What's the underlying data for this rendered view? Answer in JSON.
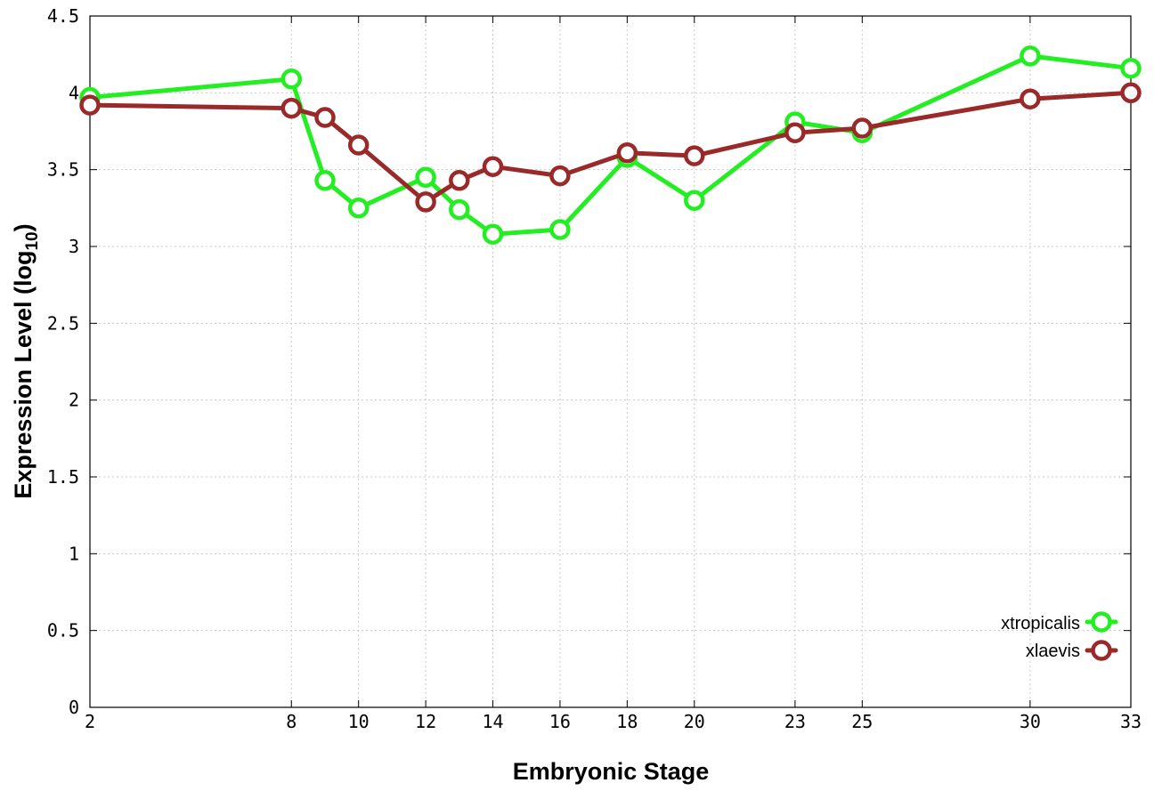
{
  "chart_data": {
    "type": "line",
    "title": "",
    "xlabel": "Embryonic Stage",
    "ylabel_main": "Expression Level (log",
    "ylabel_sub": "10",
    "ylabel_close": ")",
    "xlim": [
      2,
      33
    ],
    "ylim": [
      0,
      4.5
    ],
    "x_ticks": [
      2,
      8,
      10,
      12,
      14,
      16,
      18,
      20,
      23,
      25,
      30,
      33
    ],
    "x_tick_labels": [
      "2",
      "8",
      "10",
      "12",
      "14",
      "16",
      "18",
      "20",
      "23",
      "25",
      "30",
      "33"
    ],
    "y_ticks": [
      0,
      0.5,
      1,
      1.5,
      2,
      2.5,
      3,
      3.5,
      4,
      4.5
    ],
    "y_tick_labels": [
      "0",
      "0.5",
      "1",
      "1.5",
      "2",
      "2.5",
      "3",
      "3.5",
      "4",
      "4.5"
    ],
    "grid": true,
    "legend_position": "bottom-right",
    "x": [
      2,
      8,
      9,
      10,
      12,
      13,
      14,
      16,
      18,
      20,
      23,
      25,
      30,
      33
    ],
    "series": [
      {
        "name": "xtropicalis",
        "color": "#22ee22",
        "values": [
          3.97,
          4.09,
          3.43,
          3.25,
          3.45,
          3.24,
          3.08,
          3.11,
          3.58,
          3.3,
          3.81,
          3.74,
          4.24,
          4.16
        ]
      },
      {
        "name": "xlaevis",
        "color": "#9a2a2a",
        "values": [
          3.92,
          3.9,
          3.84,
          3.66,
          3.29,
          3.43,
          3.52,
          3.46,
          3.61,
          3.59,
          3.74,
          3.77,
          3.96,
          4.0
        ]
      }
    ]
  }
}
